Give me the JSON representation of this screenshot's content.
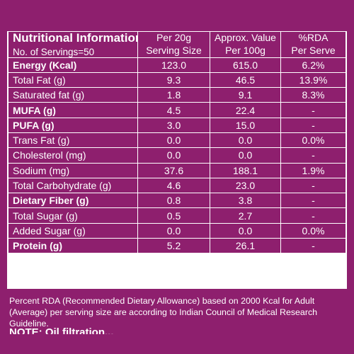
{
  "header": {
    "title": "Nutritional Information",
    "servings": "No. of Servings=50",
    "col2": [
      "Per 20g",
      "Serving Size"
    ],
    "col3": [
      "Approx. Value",
      "Per 100g"
    ],
    "col4": [
      "%RDA",
      "Per Serve"
    ]
  },
  "rows": [
    {
      "name": "Energy (Kcal)",
      "bold": true,
      "per_serving": "123.0",
      "per_100g": "615.0",
      "rda": "6.2%"
    },
    {
      "name": "Total Fat (g)",
      "bold": false,
      "per_serving": "9.3",
      "per_100g": "46.5",
      "rda": "13.9%"
    },
    {
      "name": "Saturated fat (g)",
      "bold": false,
      "per_serving": "1.8",
      "per_100g": "9.1",
      "rda": "8.3%"
    },
    {
      "name": "MUFA (g)",
      "bold": true,
      "per_serving": "4.5",
      "per_100g": "22.4",
      "rda": "-"
    },
    {
      "name": "PUFA (g)",
      "bold": true,
      "per_serving": "3.0",
      "per_100g": "15.0",
      "rda": "-"
    },
    {
      "name": "Trans Fat (g)",
      "bold": false,
      "per_serving": "0.0",
      "per_100g": "0.0",
      "rda": "0.0%"
    },
    {
      "name": "Cholesterol (mg)",
      "bold": false,
      "per_serving": "0.0",
      "per_100g": "0.0",
      "rda": "-"
    },
    {
      "name": "Sodium (mg)",
      "bold": false,
      "per_serving": "37.6",
      "per_100g": "188.1",
      "rda": "1.9%"
    },
    {
      "name": "Total Carbohydrate (g)",
      "bold": false,
      "per_serving": "4.6",
      "per_100g": "23.0",
      "rda": "-"
    },
    {
      "name": "Dietary Fiber (g)",
      "bold": true,
      "per_serving": "0.8",
      "per_100g": "3.8",
      "rda": "-"
    },
    {
      "name": "Total Sugar (g)",
      "bold": false,
      "per_serving": "0.5",
      "per_100g": "2.7",
      "rda": "-"
    },
    {
      "name": "Added Sugar (g)",
      "bold": false,
      "per_serving": "0.0",
      "per_100g": "0.0",
      "rda": "0.0%"
    },
    {
      "name": "Protein (g)",
      "bold": true,
      "per_serving": "5.2",
      "per_100g": "26.1",
      "rda": "-"
    }
  ],
  "footer": {
    "note": "Percent RDA (Recommended Dietary Allowance) based on 2000 Kcal for Adult (Average) per serving size are according to Indian Council of Medical Research Guideline.",
    "cut_text": "NOTE: Oil filtration..."
  },
  "colors": {
    "background": "#8e1f6e",
    "grid": "#ffffff"
  }
}
